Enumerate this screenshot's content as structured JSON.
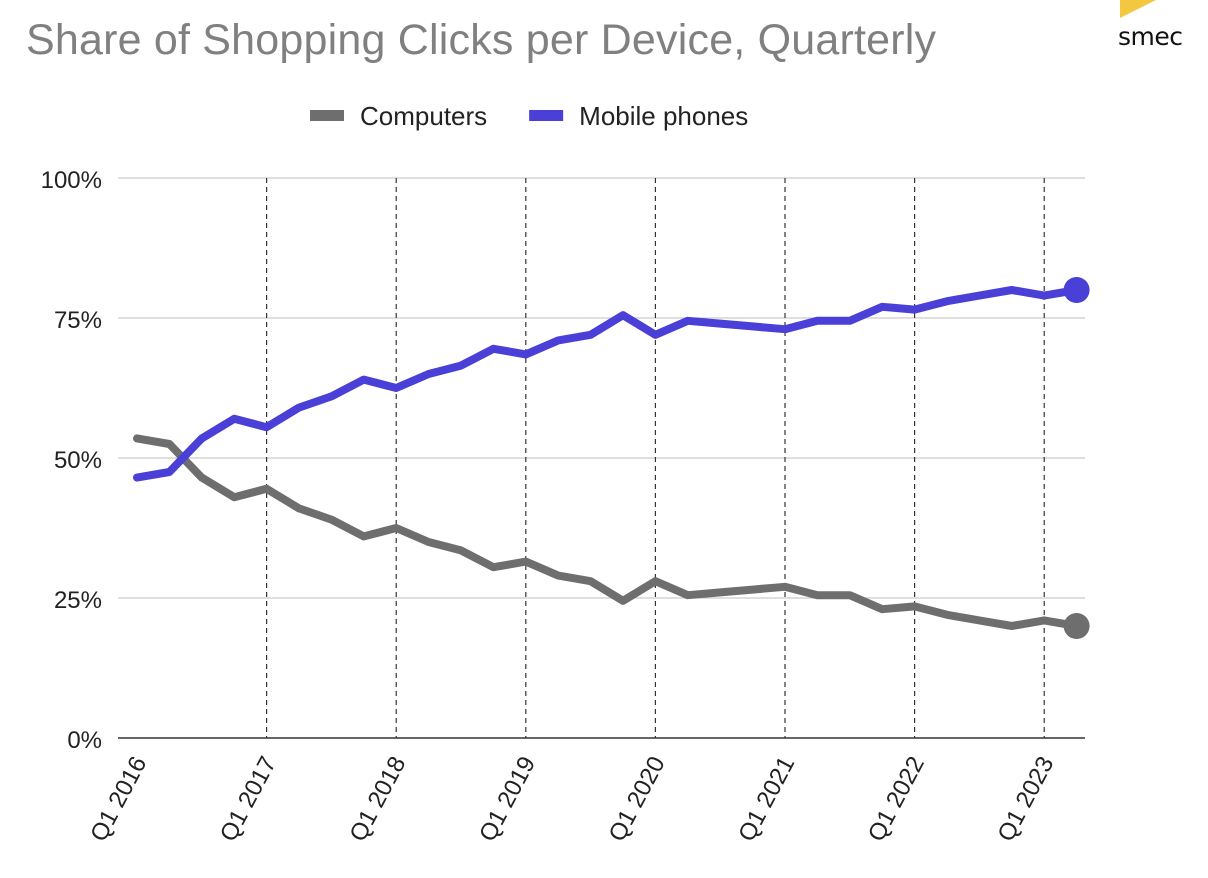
{
  "page": {
    "brand_text": "smec",
    "brand_color": "#f3c742"
  },
  "chart_data": {
    "type": "line",
    "title": "Share of Shopping Clicks per Device, Quarterly",
    "xlabel": "",
    "ylabel": "",
    "ylim": [
      0,
      100
    ],
    "y_ticks": [
      "0%",
      "25%",
      "50%",
      "75%",
      "100%"
    ],
    "y_tick_values": [
      0,
      25,
      50,
      75,
      100
    ],
    "x_tick_labels": [
      "Q1 2016",
      "Q1 2017",
      "Q1 2018",
      "Q1 2019",
      "Q1 2020",
      "Q1 2021",
      "Q1 2022",
      "Q1 2023"
    ],
    "x_tick_positions": [
      "Q1 2016",
      "Q1 2017",
      "Q1 2018",
      "Q1 2019",
      "Q1 2020",
      "Q1 2021",
      "Q1 2022",
      "Q1 2023"
    ],
    "vertical_dashed_gridlines_at": [
      "Q1 2017",
      "Q1 2018",
      "Q1 2019",
      "Q1 2020",
      "Q1 2021",
      "Q1 2022",
      "Q1 2023"
    ],
    "grid": true,
    "legend": "top-center",
    "x": [
      "Q1 2016",
      "Q2 2016",
      "Q3 2016",
      "Q4 2016",
      "Q1 2017",
      "Q2 2017",
      "Q3 2017",
      "Q4 2017",
      "Q1 2018",
      "Q2 2018",
      "Q3 2018",
      "Q4 2018",
      "Q1 2019",
      "Q2 2019",
      "Q3 2019",
      "Q4 2019",
      "Q1 2020",
      "Q2 2020",
      "Q3 2020",
      "Q4 2020",
      "Q1 2021",
      "Q2 2021",
      "Q3 2021",
      "Q4 2021",
      "Q1 2022",
      "Q2 2022",
      "Q3 2022",
      "Q4 2022",
      "Q1 2023",
      "Q2 2023"
    ],
    "series": [
      {
        "name": "Computers",
        "color": "#6e6e6e",
        "values": [
          53.5,
          52.5,
          46.5,
          43,
          44.5,
          41,
          39,
          36,
          37.5,
          35,
          33.5,
          30.5,
          31.5,
          29,
          28,
          24.5,
          28,
          25.5,
          26,
          26.5,
          27,
          25.5,
          25.5,
          23,
          23.5,
          22,
          21,
          20,
          21,
          20
        ]
      },
      {
        "name": "Mobile phones",
        "color": "#4a3fd6",
        "values": [
          46.5,
          47.5,
          53.5,
          57,
          55.5,
          59,
          61,
          64,
          62.5,
          65,
          66.5,
          69.5,
          68.5,
          71,
          72,
          75.5,
          72,
          74.5,
          74,
          73.5,
          73,
          74.5,
          74.5,
          77,
          76.5,
          78,
          79,
          80,
          79,
          80
        ]
      }
    ],
    "end_markers": true
  }
}
